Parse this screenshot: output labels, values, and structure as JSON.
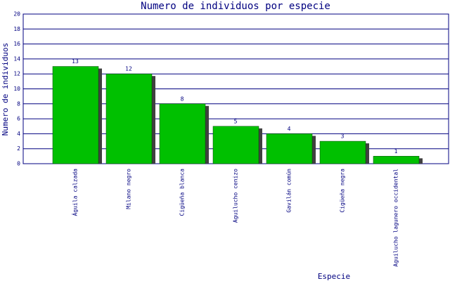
{
  "chart_data": {
    "type": "bar",
    "title": "Numero de individuos por especie",
    "x_label": "Especie",
    "y_label": "Numero de individuos",
    "categories": [
      "Águila calzada",
      "Milano negro",
      "Cigüeña blanca",
      "Aguilucho cenizo",
      "Gavilán común",
      "Cigüeña negra",
      "Aguilucho lagunero occidental"
    ],
    "values": [
      13,
      12,
      8,
      5,
      4,
      3,
      1
    ],
    "color": "#00c000",
    "ylim": [
      0,
      20
    ],
    "yticks": [
      0,
      2,
      4,
      6,
      8,
      10,
      12,
      14,
      16,
      18,
      20
    ],
    "grid": true
  }
}
